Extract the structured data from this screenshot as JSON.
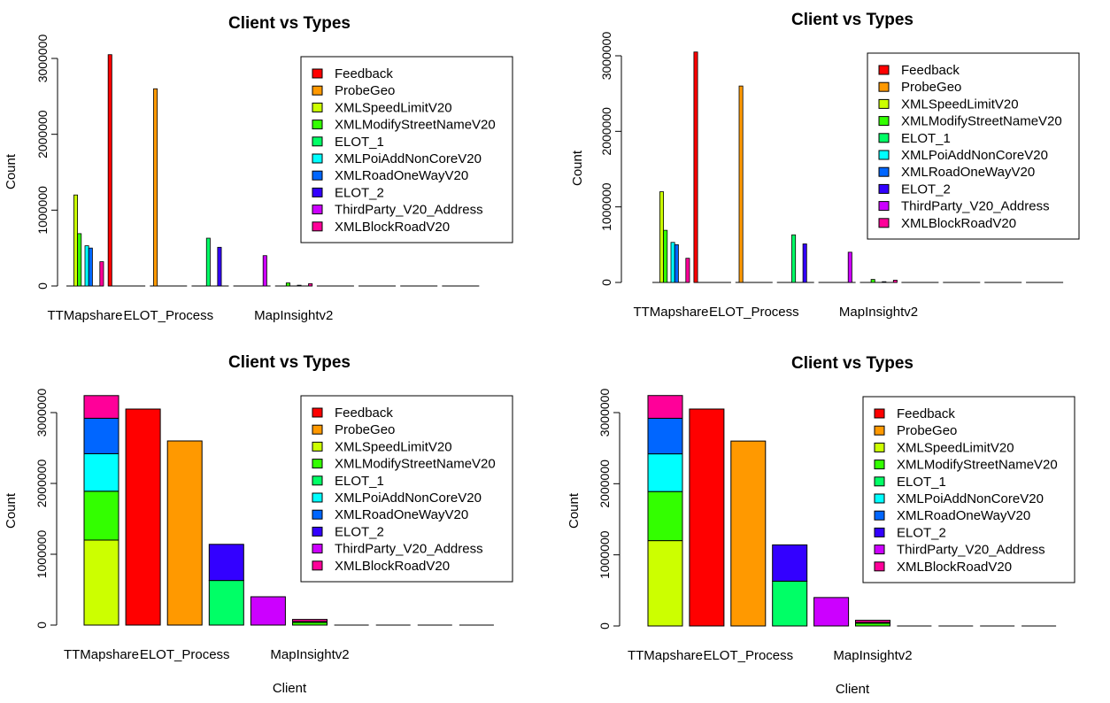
{
  "chart_data": [
    {
      "type": "bar",
      "mode": "grouped",
      "title": "Client vs Types",
      "xlabel": "",
      "ylabel": "Count",
      "ylim": [
        0,
        3200000
      ],
      "yticks": [
        0,
        1000000,
        2000000,
        3000000
      ],
      "ytick_labels": [
        "0",
        "1000000",
        "2000000",
        "3000000"
      ],
      "shown_category_labels": [
        {
          "index": 0,
          "label": "TTMapshare"
        },
        {
          "index": 2,
          "label": "ELOT_Process"
        },
        {
          "index": 5,
          "label": "MapInsightv2"
        }
      ],
      "legend_placement": "top-right"
    },
    {
      "type": "bar",
      "mode": "grouped",
      "title": "Client vs Types",
      "xlabel": "",
      "ylabel": "Count",
      "ylim": [
        0,
        3200000
      ],
      "yticks": [
        0,
        1000000,
        2000000,
        3000000
      ],
      "ytick_labels": [
        "0",
        "1000000",
        "2000000",
        "3000000"
      ],
      "shown_category_labels": [
        {
          "index": 0,
          "label": "TTMapshare"
        },
        {
          "index": 2,
          "label": "ELOT_Process"
        },
        {
          "index": 5,
          "label": "MapInsightv2"
        }
      ],
      "legend_placement": "top-right"
    },
    {
      "type": "bar",
      "mode": "stacked",
      "title": "Client vs Types",
      "xlabel": "Client",
      "ylabel": "Count",
      "ylim": [
        0,
        3300000
      ],
      "yticks": [
        0,
        1000000,
        2000000,
        3000000
      ],
      "ytick_labels": [
        "0",
        "1000000",
        "2000000",
        "3000000"
      ],
      "shown_category_labels": [
        {
          "index": 0,
          "label": "TTMapshare"
        },
        {
          "index": 2,
          "label": "ELOT_Process"
        },
        {
          "index": 5,
          "label": "MapInsightv2"
        }
      ],
      "legend_placement": "top-right"
    },
    {
      "type": "bar",
      "mode": "stacked",
      "title": "Client vs Types",
      "xlabel": "Client",
      "ylabel": "Count",
      "ylim": [
        0,
        3300000
      ],
      "yticks": [
        0,
        1000000,
        2000000,
        3000000
      ],
      "ytick_labels": [
        "0",
        "1000000",
        "2000000",
        "3000000"
      ],
      "shown_category_labels": [
        {
          "index": 0,
          "label": "TTMapshare"
        },
        {
          "index": 2,
          "label": "ELOT_Process"
        },
        {
          "index": 5,
          "label": "MapInsightv2"
        }
      ],
      "legend_placement": "top-right"
    }
  ],
  "shared": {
    "category_count": 10,
    "series": [
      {
        "name": "Feedback",
        "color": "#FF0000",
        "values": [
          0,
          3050000,
          0,
          0,
          0,
          0,
          0,
          0,
          0,
          0
        ]
      },
      {
        "name": "ProbeGeo",
        "color": "#FF9900",
        "values": [
          0,
          0,
          2600000,
          0,
          0,
          0,
          0,
          0,
          0,
          0
        ]
      },
      {
        "name": "XMLSpeedLimitV20",
        "color": "#CCFF00",
        "values": [
          1200000,
          0,
          0,
          0,
          0,
          0,
          0,
          0,
          0,
          0
        ]
      },
      {
        "name": "XMLModifyStreetNameV20",
        "color": "#33FF00",
        "values": [
          690000,
          0,
          0,
          0,
          0,
          40000,
          0,
          0,
          0,
          0
        ]
      },
      {
        "name": "ELOT_1",
        "color": "#00FF66",
        "values": [
          0,
          0,
          0,
          630000,
          0,
          0,
          0,
          0,
          0,
          0
        ]
      },
      {
        "name": "XMLPoiAddNonCoreV20",
        "color": "#00FFFF",
        "values": [
          530000,
          0,
          0,
          0,
          0,
          0,
          0,
          0,
          0,
          0
        ]
      },
      {
        "name": "XMLRoadOneWayV20",
        "color": "#0066FF",
        "values": [
          500000,
          0,
          0,
          0,
          0,
          10000,
          0,
          0,
          0,
          0
        ]
      },
      {
        "name": "ELOT_2",
        "color": "#3300FF",
        "values": [
          0,
          0,
          0,
          510000,
          0,
          0,
          0,
          0,
          0,
          0
        ]
      },
      {
        "name": "ThirdParty_V20_Address",
        "color": "#CC00FF",
        "values": [
          0,
          0,
          0,
          0,
          400000,
          0,
          0,
          0,
          0,
          0
        ]
      },
      {
        "name": "XMLBlockRoadV20",
        "color": "#FF0099",
        "values": [
          320000,
          0,
          0,
          0,
          0,
          30000,
          0,
          0,
          0,
          0
        ]
      }
    ]
  }
}
